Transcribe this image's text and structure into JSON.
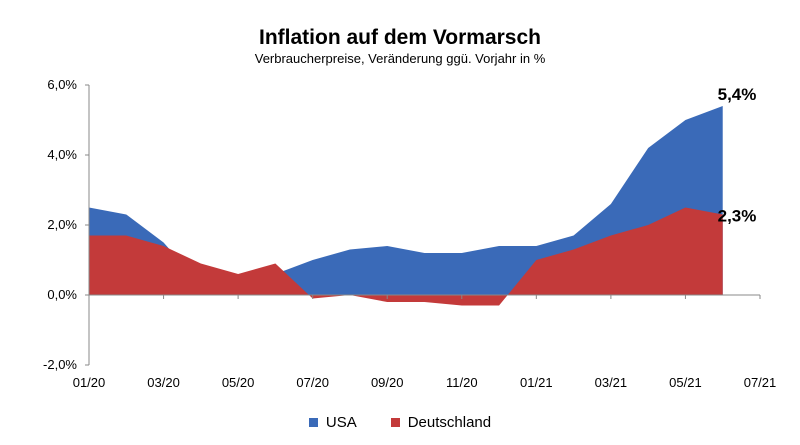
{
  "chart_data": {
    "type": "area",
    "title": "Inflation auf dem Vormarsch",
    "subtitle": "Verbraucherpreise, Veränderung ggü. Vorjahr in %",
    "x": [
      "01/20",
      "02/20",
      "03/20",
      "04/20",
      "05/20",
      "06/20",
      "07/20",
      "08/20",
      "09/20",
      "10/20",
      "11/20",
      "12/20",
      "01/21",
      "02/21",
      "03/21",
      "04/21",
      "05/21",
      "06/21"
    ],
    "x_tick_labels": [
      "01/20",
      "03/20",
      "05/20",
      "07/20",
      "09/20",
      "11/20",
      "01/21",
      "03/21",
      "05/21",
      "07/21"
    ],
    "y_tick_labels": [
      "6,0%",
      "4,0%",
      "2,0%",
      "0,0%",
      "-2,0%"
    ],
    "ylim": [
      -2,
      6
    ],
    "xlim": [
      "01/20",
      "07/21"
    ],
    "series": [
      {
        "name": "USA",
        "color": "#3a6ab8",
        "values": [
          2.5,
          2.3,
          1.5,
          0.3,
          0.1,
          0.6,
          1.0,
          1.3,
          1.4,
          1.2,
          1.2,
          1.4,
          1.4,
          1.7,
          2.6,
          4.2,
          5.0,
          5.4
        ]
      },
      {
        "name": "Deutschland",
        "color": "#c33a3a",
        "values": [
          1.7,
          1.7,
          1.4,
          0.9,
          0.6,
          0.9,
          -0.1,
          0.0,
          -0.2,
          -0.2,
          -0.3,
          -0.3,
          1.0,
          1.3,
          1.7,
          2.0,
          2.5,
          2.3
        ]
      }
    ],
    "end_labels": [
      {
        "series": "USA",
        "text": "5,4%"
      },
      {
        "series": "Deutschland",
        "text": "2,3%"
      }
    ],
    "legend_position": "bottom",
    "grid": false
  }
}
